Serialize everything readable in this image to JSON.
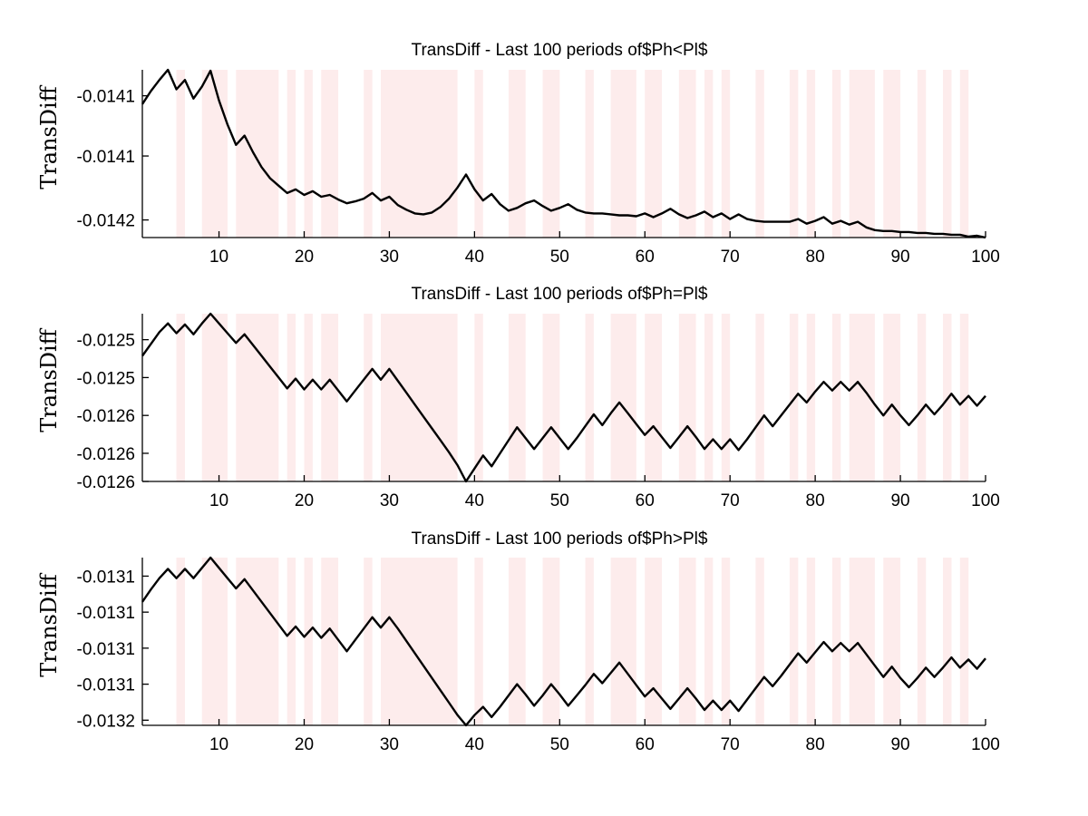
{
  "figure": {
    "background": "#ffffff",
    "shade_color": "#fdecec",
    "line_color": "#000000"
  },
  "chart_data": [
    {
      "type": "line",
      "title": "TransDiff - Last 100 periods of$Ph<Pl$",
      "ylabel": "TransDiff",
      "xlabel": "",
      "xlim": [
        1,
        100
      ],
      "ylim": [
        -0.01421,
        -0.014029
      ],
      "xticks": [
        10,
        20,
        30,
        40,
        50,
        60,
        70,
        80,
        90,
        100
      ],
      "xtick_labels": [
        "10",
        "20",
        "30",
        "40",
        "50",
        "60",
        "70",
        "80",
        "90",
        "100"
      ],
      "yticks": [
        -0.014057,
        -0.014122,
        -0.014191
      ],
      "ytick_labels": [
        "-0.0141",
        "-0.0141",
        "-0.0142"
      ],
      "shaded_regions": [
        [
          5,
          6
        ],
        [
          8,
          11
        ],
        [
          12,
          17
        ],
        [
          18,
          19
        ],
        [
          20,
          21
        ],
        [
          22,
          24
        ],
        [
          27,
          28
        ],
        [
          29,
          38
        ],
        [
          40,
          41
        ],
        [
          44,
          46
        ],
        [
          48,
          50
        ],
        [
          53,
          54
        ],
        [
          56,
          59
        ],
        [
          60,
          62
        ],
        [
          64,
          66
        ],
        [
          67,
          68
        ],
        [
          69,
          70
        ],
        [
          73,
          74
        ],
        [
          77,
          78
        ],
        [
          79,
          80
        ],
        [
          82,
          83
        ],
        [
          84,
          87
        ],
        [
          88,
          90
        ],
        [
          92,
          93
        ],
        [
          95,
          96
        ],
        [
          97,
          98
        ]
      ],
      "x": [
        1,
        2,
        3,
        4,
        5,
        6,
        7,
        8,
        9,
        10,
        11,
        12,
        13,
        14,
        15,
        16,
        17,
        18,
        19,
        20,
        21,
        22,
        23,
        24,
        25,
        26,
        27,
        28,
        29,
        30,
        31,
        32,
        33,
        34,
        35,
        36,
        37,
        38,
        39,
        40,
        41,
        42,
        43,
        44,
        45,
        46,
        47,
        48,
        49,
        50,
        51,
        52,
        53,
        54,
        55,
        56,
        57,
        58,
        59,
        60,
        61,
        62,
        63,
        64,
        65,
        66,
        67,
        68,
        69,
        70,
        71,
        72,
        73,
        74,
        75,
        76,
        77,
        78,
        79,
        80,
        81,
        82,
        83,
        84,
        85,
        86,
        87,
        88,
        89,
        90,
        91,
        92,
        93,
        94,
        95,
        96,
        97,
        98,
        99,
        100
      ],
      "series": [
        {
          "values": [
            -0.014066,
            -0.014052,
            -0.01404,
            -0.014029,
            -0.01405,
            -0.01404,
            -0.01406,
            -0.014047,
            -0.01403,
            -0.014062,
            -0.014088,
            -0.01411,
            -0.0141,
            -0.014118,
            -0.014134,
            -0.014146,
            -0.014154,
            -0.014162,
            -0.014158,
            -0.014164,
            -0.01416,
            -0.014166,
            -0.014164,
            -0.014169,
            -0.014173,
            -0.014171,
            -0.014168,
            -0.014162,
            -0.01417,
            -0.014166,
            -0.014175,
            -0.01418,
            -0.014184,
            -0.014185,
            -0.014183,
            -0.014177,
            -0.014168,
            -0.014156,
            -0.014142,
            -0.014158,
            -0.01417,
            -0.014163,
            -0.014174,
            -0.014181,
            -0.014178,
            -0.014173,
            -0.01417,
            -0.014176,
            -0.014181,
            -0.014178,
            -0.014174,
            -0.01418,
            -0.014183,
            -0.014184,
            -0.014184,
            -0.014185,
            -0.014186,
            -0.014186,
            -0.014187,
            -0.014184,
            -0.014188,
            -0.014184,
            -0.014179,
            -0.014185,
            -0.014189,
            -0.014186,
            -0.014182,
            -0.014188,
            -0.014184,
            -0.01419,
            -0.014185,
            -0.01419,
            -0.014192,
            -0.014193,
            -0.014193,
            -0.014193,
            -0.014193,
            -0.01419,
            -0.014195,
            -0.014192,
            -0.014188,
            -0.014195,
            -0.014192,
            -0.014196,
            -0.014193,
            -0.014199,
            -0.014202,
            -0.014203,
            -0.014203,
            -0.014204,
            -0.014204,
            -0.014205,
            -0.014205,
            -0.014206,
            -0.014206,
            -0.014207,
            -0.014207,
            -0.014209,
            -0.014208,
            -0.01421
          ]
        }
      ]
    },
    {
      "type": "line",
      "title": "TransDiff - Last 100 periods of$Ph=Pl$",
      "ylabel": "TransDiff",
      "xlabel": "",
      "xlim": [
        1,
        100
      ],
      "ylim": [
        -0.012631,
        -0.012476
      ],
      "xticks": [
        10,
        20,
        30,
        40,
        50,
        60,
        70,
        80,
        90,
        100
      ],
      "xtick_labels": [
        "10",
        "20",
        "30",
        "40",
        "50",
        "60",
        "70",
        "80",
        "90",
        "100"
      ],
      "yticks": [
        -0.0125,
        -0.012535,
        -0.01257,
        -0.012605,
        -0.01264
      ],
      "ytick_labels": [
        "-0.0125",
        "-0.0125",
        "-0.0126",
        "-0.0126",
        "-0.0126"
      ],
      "shaded_regions": [
        [
          5,
          6
        ],
        [
          8,
          11
        ],
        [
          12,
          17
        ],
        [
          18,
          19
        ],
        [
          20,
          21
        ],
        [
          22,
          24
        ],
        [
          27,
          28
        ],
        [
          29,
          38
        ],
        [
          40,
          41
        ],
        [
          44,
          46
        ],
        [
          48,
          50
        ],
        [
          53,
          54
        ],
        [
          56,
          59
        ],
        [
          60,
          62
        ],
        [
          64,
          66
        ],
        [
          67,
          68
        ],
        [
          69,
          70
        ],
        [
          73,
          74
        ],
        [
          77,
          78
        ],
        [
          79,
          80
        ],
        [
          82,
          83
        ],
        [
          84,
          87
        ],
        [
          88,
          90
        ],
        [
          92,
          93
        ],
        [
          95,
          96
        ],
        [
          97,
          98
        ]
      ],
      "x": [
        1,
        2,
        3,
        4,
        5,
        6,
        7,
        8,
        9,
        10,
        11,
        12,
        13,
        14,
        15,
        16,
        17,
        18,
        19,
        20,
        21,
        22,
        23,
        24,
        25,
        26,
        27,
        28,
        29,
        30,
        31,
        32,
        33,
        34,
        35,
        36,
        37,
        38,
        39,
        40,
        41,
        42,
        43,
        44,
        45,
        46,
        47,
        48,
        49,
        50,
        51,
        52,
        53,
        54,
        55,
        56,
        57,
        58,
        59,
        60,
        61,
        62,
        63,
        64,
        65,
        66,
        67,
        68,
        69,
        70,
        71,
        72,
        73,
        74,
        75,
        76,
        77,
        78,
        79,
        80,
        81,
        82,
        83,
        84,
        85,
        86,
        87,
        88,
        89,
        90,
        91,
        92,
        93,
        94,
        95,
        96,
        97,
        98,
        99,
        100
      ],
      "series": [
        {
          "values": [
            -0.012515,
            -0.012504,
            -0.012493,
            -0.012485,
            -0.012494,
            -0.012486,
            -0.012495,
            -0.012485,
            -0.012476,
            -0.012485,
            -0.012494,
            -0.012503,
            -0.012495,
            -0.012505,
            -0.012515,
            -0.012525,
            -0.012535,
            -0.012545,
            -0.012536,
            -0.012546,
            -0.012537,
            -0.012546,
            -0.012537,
            -0.012547,
            -0.012557,
            -0.012547,
            -0.012537,
            -0.012527,
            -0.012537,
            -0.012527,
            -0.012538,
            -0.012549,
            -0.01256,
            -0.012571,
            -0.012582,
            -0.012593,
            -0.012604,
            -0.012616,
            -0.012631,
            -0.012619,
            -0.012607,
            -0.012617,
            -0.012605,
            -0.012593,
            -0.012581,
            -0.012591,
            -0.012601,
            -0.012591,
            -0.012581,
            -0.012591,
            -0.012601,
            -0.012591,
            -0.01258,
            -0.012569,
            -0.012579,
            -0.012568,
            -0.012558,
            -0.012568,
            -0.012578,
            -0.012588,
            -0.01258,
            -0.01259,
            -0.0126,
            -0.01259,
            -0.01258,
            -0.01259,
            -0.012601,
            -0.012592,
            -0.012601,
            -0.012592,
            -0.012602,
            -0.012592,
            -0.012581,
            -0.01257,
            -0.01258,
            -0.01257,
            -0.01256,
            -0.01255,
            -0.012558,
            -0.012548,
            -0.012539,
            -0.012547,
            -0.012539,
            -0.012547,
            -0.012539,
            -0.012549,
            -0.01256,
            -0.01257,
            -0.01256,
            -0.01257,
            -0.012579,
            -0.01257,
            -0.01256,
            -0.012569,
            -0.01256,
            -0.01255,
            -0.01256,
            -0.012552,
            -0.012561,
            -0.012552
          ]
        }
      ]
    },
    {
      "type": "line",
      "title": "TransDiff - Last 100 periods of$Ph>Pl$",
      "ylabel": "TransDiff",
      "xlabel": "",
      "xlim": [
        1,
        100
      ],
      "ylim": [
        -0.01322,
        -0.013057
      ],
      "xticks": [
        10,
        20,
        30,
        40,
        50,
        60,
        70,
        80,
        90,
        100
      ],
      "xtick_labels": [
        "10",
        "20",
        "30",
        "40",
        "50",
        "60",
        "70",
        "80",
        "90",
        "100"
      ],
      "yticks": [
        -0.013075,
        -0.01311,
        -0.013145,
        -0.01318,
        -0.013215
      ],
      "ytick_labels": [
        "-0.0131",
        "-0.0131",
        "-0.0131",
        "-0.0131",
        "-0.0132"
      ],
      "shaded_regions": [
        [
          5,
          6
        ],
        [
          8,
          11
        ],
        [
          12,
          17
        ],
        [
          18,
          19
        ],
        [
          20,
          21
        ],
        [
          22,
          24
        ],
        [
          27,
          28
        ],
        [
          29,
          38
        ],
        [
          40,
          41
        ],
        [
          44,
          46
        ],
        [
          48,
          50
        ],
        [
          53,
          54
        ],
        [
          56,
          59
        ],
        [
          60,
          62
        ],
        [
          64,
          66
        ],
        [
          67,
          68
        ],
        [
          69,
          70
        ],
        [
          73,
          74
        ],
        [
          77,
          78
        ],
        [
          79,
          80
        ],
        [
          82,
          83
        ],
        [
          84,
          87
        ],
        [
          88,
          90
        ],
        [
          92,
          93
        ],
        [
          95,
          96
        ],
        [
          97,
          98
        ]
      ],
      "x": [
        1,
        2,
        3,
        4,
        5,
        6,
        7,
        8,
        9,
        10,
        11,
        12,
        13,
        14,
        15,
        16,
        17,
        18,
        19,
        20,
        21,
        22,
        23,
        24,
        25,
        26,
        27,
        28,
        29,
        30,
        31,
        32,
        33,
        34,
        35,
        36,
        37,
        38,
        39,
        40,
        41,
        42,
        43,
        44,
        45,
        46,
        47,
        48,
        49,
        50,
        51,
        52,
        53,
        54,
        55,
        56,
        57,
        58,
        59,
        60,
        61,
        62,
        63,
        64,
        65,
        66,
        67,
        68,
        69,
        70,
        71,
        72,
        73,
        74,
        75,
        76,
        77,
        78,
        79,
        80,
        81,
        82,
        83,
        84,
        85,
        86,
        87,
        88,
        89,
        90,
        91,
        92,
        93,
        94,
        95,
        96,
        97,
        98,
        99,
        100
      ],
      "series": [
        {
          "values": [
            -0.0131,
            -0.013088,
            -0.013077,
            -0.013068,
            -0.013077,
            -0.013068,
            -0.013077,
            -0.013067,
            -0.013057,
            -0.013067,
            -0.013077,
            -0.013087,
            -0.013078,
            -0.013089,
            -0.0131,
            -0.013111,
            -0.013122,
            -0.013133,
            -0.013124,
            -0.013134,
            -0.013125,
            -0.013135,
            -0.013126,
            -0.013137,
            -0.013148,
            -0.013137,
            -0.013126,
            -0.013115,
            -0.013125,
            -0.013115,
            -0.013126,
            -0.013138,
            -0.01315,
            -0.013162,
            -0.013174,
            -0.013186,
            -0.013198,
            -0.01321,
            -0.01322,
            -0.01321,
            -0.013202,
            -0.013212,
            -0.013202,
            -0.013191,
            -0.01318,
            -0.01319,
            -0.013201,
            -0.013191,
            -0.01318,
            -0.01319,
            -0.013201,
            -0.013191,
            -0.013181,
            -0.01317,
            -0.013179,
            -0.013169,
            -0.013159,
            -0.01317,
            -0.013181,
            -0.013192,
            -0.013184,
            -0.013194,
            -0.013204,
            -0.013194,
            -0.013184,
            -0.013194,
            -0.013205,
            -0.013196,
            -0.013205,
            -0.013196,
            -0.013206,
            -0.013195,
            -0.013184,
            -0.013173,
            -0.013182,
            -0.013172,
            -0.013161,
            -0.01315,
            -0.013159,
            -0.013149,
            -0.013139,
            -0.013148,
            -0.01314,
            -0.013148,
            -0.01314,
            -0.013151,
            -0.013162,
            -0.013173,
            -0.013163,
            -0.013174,
            -0.013183,
            -0.013174,
            -0.013164,
            -0.013173,
            -0.013164,
            -0.013154,
            -0.013164,
            -0.013156,
            -0.013165,
            -0.013155
          ]
        }
      ]
    }
  ]
}
